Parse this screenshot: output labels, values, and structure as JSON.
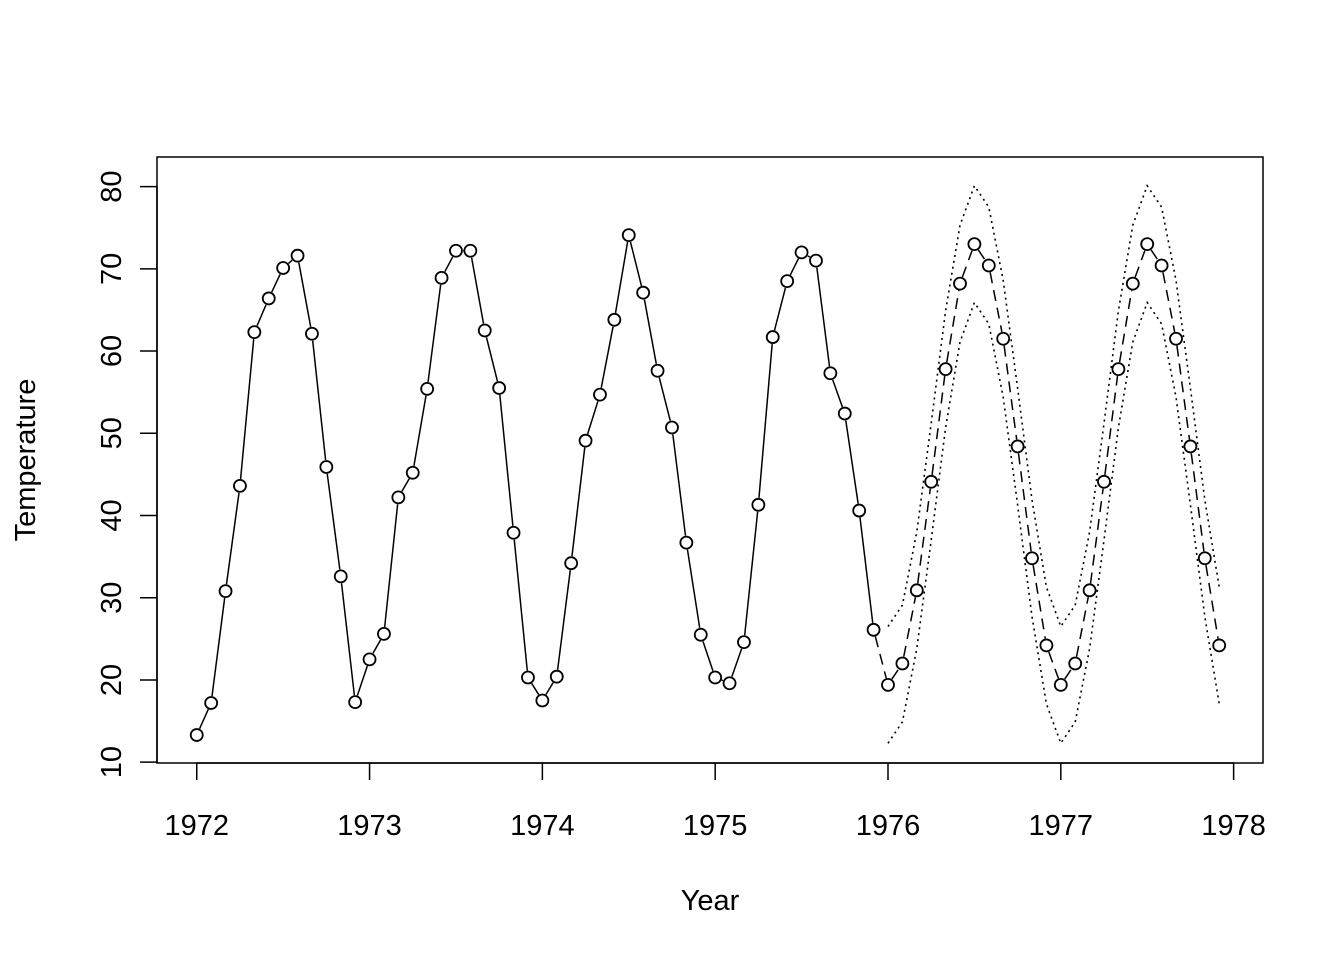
{
  "chart_data": {
    "type": "line",
    "xlabel": "Year",
    "ylabel": "Temperature",
    "xlim": [
      1971.77,
      1978.17
    ],
    "ylim": [
      9.9,
      83.6
    ],
    "x_ticks": [
      {
        "value": 1972,
        "label": "1972"
      },
      {
        "value": 1973,
        "label": "1973"
      },
      {
        "value": 1974,
        "label": "1974"
      },
      {
        "value": 1975,
        "label": "1975"
      },
      {
        "value": 1976,
        "label": "1976"
      },
      {
        "value": 1977,
        "label": "1977"
      },
      {
        "value": 1978,
        "label": "1978"
      }
    ],
    "y_ticks": [
      {
        "value": 10,
        "label": "10"
      },
      {
        "value": 20,
        "label": "20"
      },
      {
        "value": 30,
        "label": "30"
      },
      {
        "value": 40,
        "label": "40"
      },
      {
        "value": 50,
        "label": "50"
      },
      {
        "value": 60,
        "label": "60"
      },
      {
        "value": 70,
        "label": "70"
      },
      {
        "value": 80,
        "label": "80"
      }
    ],
    "grid": false,
    "x_start": 1972,
    "x_step": 0.08333,
    "forecast_start": 1976,
    "series": [
      {
        "role": "observed",
        "style": "solid line with open circles",
        "values": [
          13.3,
          17.2,
          30.8,
          43.6,
          62.3,
          66.4,
          70.1,
          71.6,
          62.1,
          45.9,
          32.6,
          17.3,
          22.5,
          25.6,
          42.2,
          45.2,
          55.4,
          68.9,
          72.2,
          72.2,
          62.5,
          55.5,
          37.9,
          20.3,
          17.5,
          20.4,
          34.2,
          49.1,
          54.7,
          63.8,
          74.1,
          67.1,
          57.6,
          50.7,
          36.7,
          25.5,
          20.3,
          19.6,
          24.6,
          41.3,
          61.7,
          68.5,
          72.0,
          71.0,
          57.3,
          52.4,
          40.6,
          26.1
        ]
      },
      {
        "role": "forecast",
        "style": "open circles",
        "values": [
          19.4,
          22.0,
          30.9,
          44.1,
          57.8,
          68.2,
          73.0,
          70.4,
          61.5,
          48.4,
          34.8,
          24.2,
          19.4,
          22.0,
          30.9,
          44.1,
          57.8,
          68.2,
          73.0,
          70.4,
          61.5,
          48.4,
          34.8,
          24.2
        ]
      },
      {
        "role": "lower-bound",
        "style": "dotted line",
        "values": [
          12.3,
          14.9,
          23.8,
          37.0,
          50.7,
          61.1,
          65.9,
          63.3,
          54.4,
          41.3,
          27.7,
          17.1,
          12.3,
          14.9,
          23.8,
          37.0,
          50.7,
          61.1,
          65.9,
          63.3,
          54.4,
          41.3,
          27.7,
          17.1
        ]
      },
      {
        "role": "upper-bound",
        "style": "dotted line",
        "values": [
          26.5,
          29.1,
          38.0,
          51.2,
          64.9,
          75.3,
          80.1,
          77.5,
          68.6,
          55.5,
          41.9,
          31.3,
          26.5,
          29.1,
          38.0,
          51.2,
          64.9,
          75.3,
          80.1,
          77.5,
          68.6,
          55.5,
          41.9,
          31.3
        ]
      }
    ]
  }
}
